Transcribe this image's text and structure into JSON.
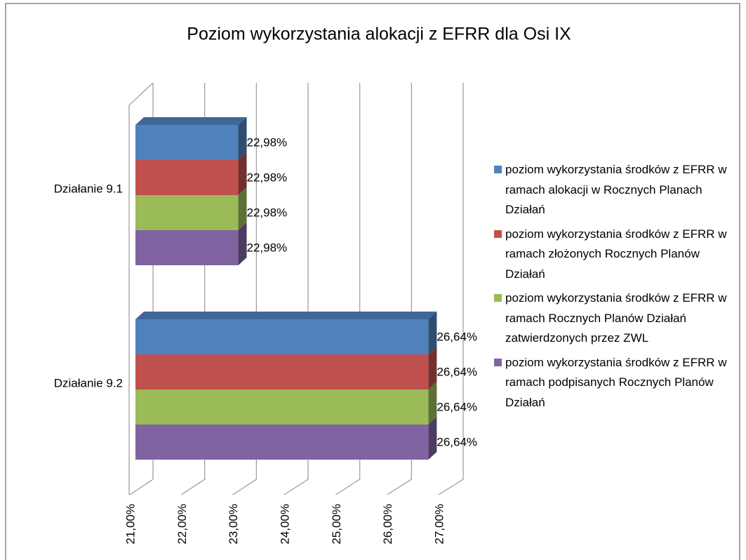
{
  "chart_data": {
    "type": "bar3d_horizontal",
    "title": "Poziom wykorzystania alokacji z EFRR dla Osi IX",
    "categories": [
      "Działanie 9.1",
      "Działanie 9.2"
    ],
    "series": [
      {
        "name": "poziom wykorzystania środków z EFRR w ramach alokacji w Rocznych Planach Działań",
        "color": "#4f81bd",
        "values": [
          22.98,
          26.64
        ],
        "value_labels": [
          "22,98%",
          "26,64%"
        ]
      },
      {
        "name": "poziom wykorzystania środków z EFRR w ramach złożonych Rocznych Planów Działań",
        "color": "#c0504d",
        "values": [
          22.98,
          26.64
        ],
        "value_labels": [
          "22,98%",
          "26,64%"
        ]
      },
      {
        "name": "poziom wykorzystania środków z EFRR w ramach Rocznych Planów Działań zatwierdzonych przez ZWL",
        "color": "#9bbb59",
        "values": [
          22.98,
          26.64
        ],
        "value_labels": [
          "22,98%",
          "26,64%"
        ]
      },
      {
        "name": "poziom wykorzystania środków z EFRR w ramach podpisanych Rocznych Planów Działań",
        "color": "#8064a2",
        "values": [
          22.98,
          26.64
        ],
        "value_labels": [
          "22,98%",
          "26,64%"
        ]
      }
    ],
    "xlim": [
      21,
      27
    ],
    "xticks": [
      {
        "value": 21,
        "label": "21,00%"
      },
      {
        "value": 22,
        "label": "22,00%"
      },
      {
        "value": 23,
        "label": "23,00%"
      },
      {
        "value": 24,
        "label": "24,00%"
      },
      {
        "value": 25,
        "label": "25,00%"
      },
      {
        "value": 26,
        "label": "26,00%"
      },
      {
        "value": 27,
        "label": "27,00%"
      }
    ],
    "grid": true,
    "legend": "right"
  }
}
